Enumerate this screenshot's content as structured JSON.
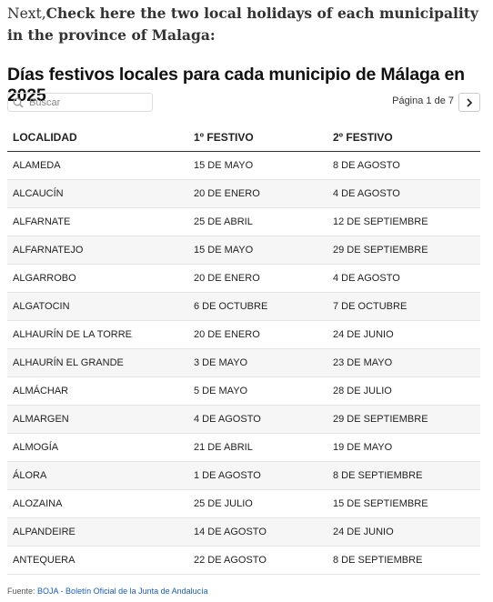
{
  "intro": {
    "lead": "Next,",
    "text": "Check here the two local holidays of each municipality in the province of Malaga:"
  },
  "title": "Días festivos locales para cada municipio de Málaga en 2025",
  "search_placeholder": "Buscar",
  "pagination": "Página 1 de 7",
  "table": {
    "headers": [
      "LOCALIDAD",
      "1º FESTIVO",
      "2º FESTIVO"
    ],
    "rows": [
      [
        "ALAMEDA",
        "15 DE MAYO",
        "8 DE AGOSTO"
      ],
      [
        "ALCAUCÍN",
        "20 DE ENERO",
        "4 DE AGOSTO"
      ],
      [
        "ALFARNATE",
        "25 DE ABRIL",
        "12 DE SEPTIEMBRE"
      ],
      [
        "ALFARNATEJO",
        "15 DE MAYO",
        "29 DE SEPTIEMBRE"
      ],
      [
        "ALGARROBO",
        "20 DE ENERO",
        "4 DE AGOSTO"
      ],
      [
        "ALGATOCIN",
        "6 DE OCTUBRE",
        "7 DE OCTUBRE"
      ],
      [
        "ALHAURÍN DE LA TORRE",
        "20 DE ENERO",
        "24 DE JUNIO"
      ],
      [
        "ALHAURÍN EL GRANDE",
        "3 DE MAYO",
        "23 DE MAYO"
      ],
      [
        "ALMÁCHAR",
        "5 DE MAYO",
        "28 DE JULIO"
      ],
      [
        "ALMARGEN",
        "4 DE AGOSTO",
        "29 DE SEPTIEMBRE"
      ],
      [
        "ALMOGÍA",
        "21 DE ABRIL",
        "19 DE MAYO"
      ],
      [
        "ÁLORA",
        "1 DE AGOSTO",
        "8 DE SEPTIEMBRE"
      ],
      [
        "ALOZAINA",
        "25 DE JULIO",
        "15 DE SEPTIEMBRE"
      ],
      [
        "ALPANDEIRE",
        "14 DE AGOSTO",
        "24 DE JUNIO"
      ],
      [
        "ANTEQUERA",
        "22 DE AGOSTO",
        "8 DE SEPTIEMBRE"
      ]
    ]
  },
  "footer": {
    "label": "Fuente:",
    "source": "BOJA - Boletín Oficial de la Junta de Andalucía"
  }
}
